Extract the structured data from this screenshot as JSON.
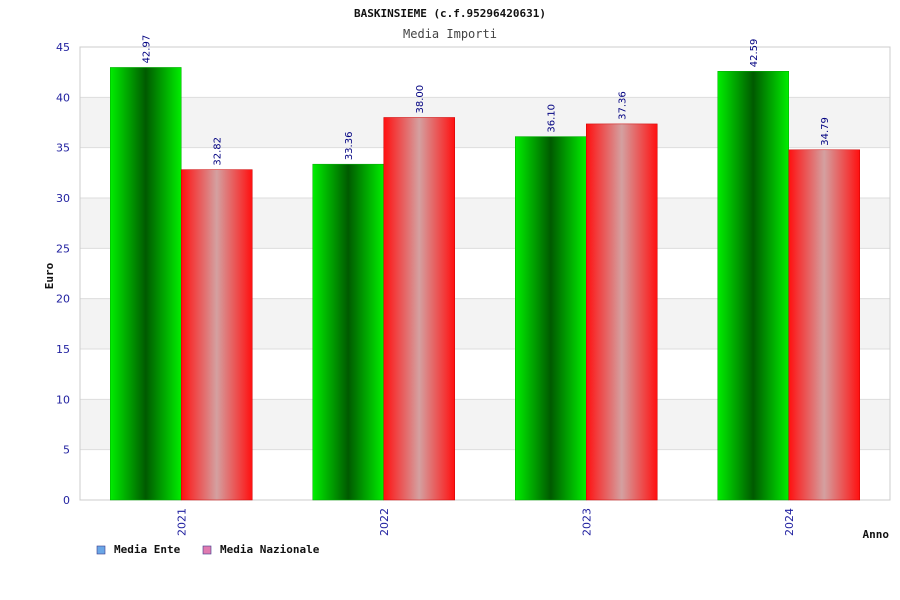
{
  "chart_data": {
    "type": "bar",
    "title": "BASKINSIEME (c.f.95296420631)",
    "subtitle": "Media Importi",
    "xlabel": "Anno",
    "ylabel": "Euro",
    "ylim": [
      0,
      45
    ],
    "yticks": [
      "0",
      "5",
      "10",
      "15",
      "20",
      "25",
      "30",
      "35",
      "40",
      "45"
    ],
    "grid": true,
    "legend_position": "bottom-left",
    "categories": [
      "2021",
      "2022",
      "2023",
      "2024"
    ],
    "series": [
      {
        "name": "Media Ente",
        "values": [
          42.97,
          33.36,
          36.1,
          42.59
        ],
        "labels": [
          "42.97",
          "33.36",
          "36.10",
          "42.59"
        ],
        "color": "#00dd00",
        "legend_color": "#6aa6e6"
      },
      {
        "name": "Media Nazionale",
        "values": [
          32.82,
          38.0,
          37.36,
          34.79
        ],
        "labels": [
          "32.82",
          "38.00",
          "37.36",
          "34.79"
        ],
        "color": "#ff1a1a",
        "legend_color": "#e07ab0"
      }
    ]
  }
}
